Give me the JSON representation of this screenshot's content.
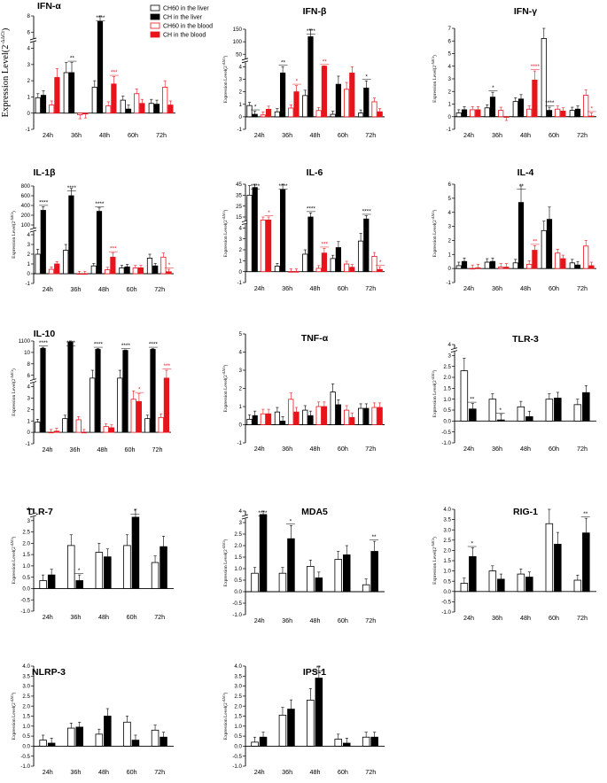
{
  "figure": {
    "y_label_main": "Expression Level(2",
    "y_label_sup": "-ΔΔCt",
    "y_label_close": ")",
    "colors": {
      "liver_ch60": "#ffffff",
      "liver_ch": "#000000",
      "blood_ch60": "#ffffff",
      "blood_ch": "#e8141c",
      "red": "#e8141c",
      "black": "#000000"
    },
    "legend": [
      {
        "label": "CH60 in the liver",
        "style": "open-black"
      },
      {
        "label": "CH in the liver",
        "style": "filled-black"
      },
      {
        "label": "CH60 in the blood",
        "style": "open-red"
      },
      {
        "label": "CH in the blood",
        "style": "filled-red"
      }
    ]
  },
  "chart_data": [
    {
      "type": "bar",
      "title": "IFN-α",
      "ylabel": "Expression Level(2-ΔΔCt)",
      "categories": [
        "24h",
        "36h",
        "48h",
        "60h",
        "72h"
      ],
      "ylim": [
        -1,
        8
      ],
      "yticks": [
        "-1",
        "0",
        "1",
        "2",
        "3",
        "4",
        "6",
        "8"
      ],
      "axis_break": true,
      "series": [
        {
          "name": "CH60 in the liver",
          "values": [
            0.95,
            2.5,
            1.6,
            0.8,
            0.6
          ]
        },
        {
          "name": "CH in the liver",
          "values": [
            1.1,
            2.5,
            7.3,
            0.25,
            0.55
          ]
        },
        {
          "name": "CH60 in the blood",
          "values": [
            0.5,
            -0.1,
            0.45,
            1.2,
            1.6
          ]
        },
        {
          "name": "CH in the blood",
          "values": [
            2.2,
            -0.05,
            1.8,
            0.6,
            0.5
          ]
        }
      ],
      "annotations": [
        {
          "category": "36h",
          "text": "**",
          "color": "black"
        },
        {
          "category": "48h",
          "text": "****",
          "color": "black"
        },
        {
          "category": "48h",
          "text": "***",
          "color": "red"
        }
      ]
    },
    {
      "type": "bar",
      "title": "IFN-β",
      "ylabel": "Expression Level(2-ΔΔCt)",
      "categories": [
        "24h",
        "36h",
        "48h",
        "60h",
        "72h"
      ],
      "ylim": [
        -1,
        150
      ],
      "yticks": [
        "-1",
        "0",
        "1",
        "2",
        "3",
        "4",
        "50",
        "100",
        "150"
      ],
      "axis_break": true,
      "series": [
        {
          "name": "CH60 in the liver",
          "values": [
            0.9,
            0.4,
            1.7,
            0.2,
            0.3
          ]
        },
        {
          "name": "CH in the liver",
          "values": [
            0.2,
            3.5,
            120,
            2.6,
            2.3
          ]
        },
        {
          "name": "CH60 in the blood",
          "values": [
            0.15,
            0.7,
            0.5,
            2.2,
            1.2
          ]
        },
        {
          "name": "CH in the blood",
          "values": [
            0.6,
            2.0,
            6.0,
            3.5,
            0.4
          ]
        }
      ],
      "annotations": [
        {
          "category": "24h",
          "text": "*",
          "color": "black"
        },
        {
          "category": "36h",
          "text": "**",
          "color": "black"
        },
        {
          "category": "36h",
          "text": "*",
          "color": "red"
        },
        {
          "category": "48h",
          "text": "****",
          "color": "black"
        },
        {
          "category": "48h",
          "text": "**",
          "color": "red"
        },
        {
          "category": "72h",
          "text": "*",
          "color": "black"
        }
      ]
    },
    {
      "type": "bar",
      "title": "IFN-γ",
      "ylabel": "Expression Level(2-ΔΔCt)",
      "categories": [
        "24h",
        "36h",
        "48h",
        "60h",
        "72h"
      ],
      "ylim": [
        -1,
        7
      ],
      "yticks": [
        "-1",
        "0",
        "1",
        "2",
        "3",
        "4",
        "5",
        "6",
        "7"
      ],
      "axis_break": true,
      "series": [
        {
          "name": "CH60 in the liver",
          "values": [
            0.3,
            0.7,
            1.2,
            6.2,
            0.5
          ]
        },
        {
          "name": "CH in the liver",
          "values": [
            0.55,
            1.55,
            1.4,
            0.5,
            0.6
          ]
        },
        {
          "name": "CH60 in the blood",
          "values": [
            0.55,
            0.5,
            0.6,
            0.6,
            1.7
          ]
        },
        {
          "name": "CH in the blood",
          "values": [
            0.55,
            -0.05,
            2.9,
            0.45,
            0.05
          ]
        }
      ],
      "annotations": [
        {
          "category": "36h",
          "text": "*",
          "color": "black"
        },
        {
          "category": "48h",
          "text": "****",
          "color": "red"
        },
        {
          "category": "60h",
          "text": "****",
          "color": "black"
        },
        {
          "category": "72h",
          "text": "*",
          "color": "red"
        }
      ]
    },
    {
      "type": "bar",
      "title": "IL-1β",
      "ylabel": "Expression Level(2-ΔΔCt)",
      "categories": [
        "24h",
        "36h",
        "48h",
        "60h",
        "72h"
      ],
      "ylim": [
        -1,
        800
      ],
      "yticks": [
        "-1",
        "0",
        "1",
        "2",
        "3",
        "4",
        "100",
        "200",
        "400",
        "600",
        "800"
      ],
      "axis_break": true,
      "series": [
        {
          "name": "CH60 in the liver",
          "values": [
            2.0,
            2.4,
            0.8,
            0.6,
            1.6
          ]
        },
        {
          "name": "CH in the liver",
          "values": [
            300,
            600,
            280,
            0.7,
            0.8
          ]
        },
        {
          "name": "CH60 in the blood",
          "values": [
            0.45,
            0.0,
            0.4,
            0.6,
            1.7
          ]
        },
        {
          "name": "CH in the blood",
          "values": [
            1.0,
            0.0,
            1.7,
            0.6,
            0.2
          ]
        }
      ],
      "annotations": [
        {
          "category": "24h",
          "text": "****",
          "color": "black"
        },
        {
          "category": "36h",
          "text": "****",
          "color": "black"
        },
        {
          "category": "48h",
          "text": "****",
          "color": "black"
        },
        {
          "category": "48h",
          "text": "***",
          "color": "red"
        },
        {
          "category": "72h",
          "text": "*",
          "color": "red"
        }
      ]
    },
    {
      "type": "bar",
      "title": "IL-6",
      "ylabel": "Expression Level(2-ΔΔCt)",
      "categories": [
        "24h",
        "36h",
        "48h",
        "60h",
        "72h"
      ],
      "ylim": [
        -1,
        45
      ],
      "yticks": [
        "-1",
        "0",
        "1",
        "2",
        "3",
        "4",
        "15",
        "25",
        "35",
        "45"
      ],
      "axis_break": true,
      "series": [
        {
          "name": "CH60 in the liver",
          "values": [
            35,
            0.5,
            1.6,
            1.2,
            2.8
          ]
        },
        {
          "name": "CH in the liver",
          "values": [
            42,
            40,
            15,
            2.2,
            13
          ]
        },
        {
          "name": "CH60 in the blood",
          "values": [
            12,
            0.0,
            0.3,
            0.7,
            1.4
          ]
        },
        {
          "name": "CH in the blood",
          "values": [
            12,
            0.0,
            1.7,
            0.4,
            0.2
          ]
        }
      ],
      "annotations": [
        {
          "category": "24h",
          "text": "****",
          "color": "black"
        },
        {
          "category": "24h",
          "text": "*",
          "color": "red"
        },
        {
          "category": "36h",
          "text": "****",
          "color": "black"
        },
        {
          "category": "48h",
          "text": "****",
          "color": "black"
        },
        {
          "category": "48h",
          "text": "***",
          "color": "red"
        },
        {
          "category": "72h",
          "text": "****",
          "color": "black"
        },
        {
          "category": "72h",
          "text": "*",
          "color": "red"
        }
      ]
    },
    {
      "type": "bar",
      "title": "IL-4",
      "ylabel": "Expression Level(2-ΔΔCt)",
      "categories": [
        "24h",
        "36h",
        "48h",
        "60h",
        "72h"
      ],
      "ylim": [
        -1,
        6
      ],
      "yticks": [
        "-1",
        "0",
        "1",
        "2",
        "3",
        "4",
        "5",
        "6"
      ],
      "axis_break": true,
      "series": [
        {
          "name": "CH60 in the liver",
          "values": [
            0.2,
            0.45,
            0.4,
            2.7,
            0.4
          ]
        },
        {
          "name": "CH in the liver",
          "values": [
            0.5,
            0.5,
            4.7,
            3.5,
            0.25
          ]
        },
        {
          "name": "CH60 in the blood",
          "values": [
            0.0,
            0.1,
            0.3,
            1.1,
            1.6
          ]
        },
        {
          "name": "CH in the blood",
          "values": [
            0.05,
            0.1,
            1.3,
            0.7,
            0.2
          ]
        }
      ],
      "annotations": [
        {
          "category": "48h",
          "text": "**",
          "color": "black"
        },
        {
          "category": "48h",
          "text": "**",
          "color": "red"
        }
      ]
    },
    {
      "type": "bar",
      "title": "IL-10",
      "ylabel": "Expression Level(2-ΔΔCt)",
      "categories": [
        "24h",
        "36h",
        "48h",
        "60h",
        "72h"
      ],
      "ylim": [
        -1,
        1100
      ],
      "yticks": [
        "-1",
        "0",
        "1",
        "2",
        "3",
        "4",
        "6",
        "8",
        "10",
        "1100"
      ],
      "axis_break": true,
      "series": [
        {
          "name": "CH60 in the liver",
          "values": [
            0.9,
            1.2,
            5.5,
            5.5,
            1.2
          ]
        },
        {
          "name": "CH in the liver",
          "values": [
            400,
            1000,
            300,
            200,
            300
          ]
        },
        {
          "name": "CH60 in the blood",
          "values": [
            0.0,
            1.1,
            0.5,
            2.9,
            1.3
          ]
        },
        {
          "name": "CH in the blood",
          "values": [
            0.1,
            0.0,
            0.4,
            2.7,
            5.5
          ]
        }
      ],
      "annotations": [
        {
          "category": "24h",
          "text": "****",
          "color": "black"
        },
        {
          "category": "36h",
          "text": "****",
          "color": "black"
        },
        {
          "category": "48h",
          "text": "****",
          "color": "black"
        },
        {
          "category": "60h",
          "text": "****",
          "color": "black"
        },
        {
          "category": "60h",
          "text": "*",
          "color": "red"
        },
        {
          "category": "72h",
          "text": "****",
          "color": "black"
        },
        {
          "category": "72h",
          "text": "***",
          "color": "red"
        }
      ]
    },
    {
      "type": "bar",
      "title": "TNF-α",
      "ylabel": "Expression Level(2-ΔΔCt)",
      "categories": [
        "24h",
        "36h",
        "48h",
        "60h",
        "72h"
      ],
      "ylim": [
        -1,
        5
      ],
      "yticks": [
        "-1",
        "0",
        "1",
        "2",
        "3",
        "4",
        "5"
      ],
      "axis_break": false,
      "series": [
        {
          "name": "CH60 in the liver",
          "values": [
            0.3,
            0.7,
            0.8,
            1.8,
            0.9
          ]
        },
        {
          "name": "CH in the liver",
          "values": [
            0.5,
            0.2,
            0.5,
            1.1,
            0.9
          ]
        },
        {
          "name": "CH60 in the blood",
          "values": [
            0.6,
            1.4,
            1.0,
            0.8,
            0.95
          ]
        },
        {
          "name": "CH in the blood",
          "values": [
            0.6,
            0.7,
            1.0,
            0.4,
            0.95
          ]
        }
      ],
      "annotations": []
    },
    {
      "type": "bar",
      "title": "TLR-3",
      "ylabel": "Expression Level(2-ΔΔCt)",
      "categories": [
        "24h",
        "36h",
        "48h",
        "60h",
        "72h"
      ],
      "ylim": [
        -1,
        4
      ],
      "yticks": [
        "-1.0",
        "-0.5",
        "0.0",
        "0.5",
        "1.0",
        "1.5",
        "2.0",
        "2.5",
        "3",
        "4"
      ],
      "axis_break": true,
      "series": [
        {
          "name": "CH60 in the liver",
          "values": [
            2.3,
            1.0,
            0.65,
            1.0,
            0.75
          ]
        },
        {
          "name": "CH in the liver",
          "values": [
            0.55,
            0.05,
            0.2,
            1.05,
            1.3
          ]
        }
      ],
      "annotations": [
        {
          "category": "24h",
          "text": "**",
          "color": "black"
        },
        {
          "category": "36h",
          "text": "*",
          "color": "black"
        }
      ]
    },
    {
      "type": "bar",
      "title": "TLR-7",
      "ylabel": "Expression Level(2-ΔΔCt)",
      "categories": [
        "24h",
        "36h",
        "48h",
        "60h",
        "72h"
      ],
      "ylim": [
        -1,
        4
      ],
      "yticks": [
        "-1.0",
        "-0.5",
        "0.0",
        "0.5",
        "1.0",
        "1.5",
        "2.0",
        "2.5",
        "3",
        "4"
      ],
      "axis_break": true,
      "series": [
        {
          "name": "CH60 in the liver",
          "values": [
            0.35,
            1.9,
            1.6,
            1.9,
            1.15
          ]
        },
        {
          "name": "CH in the liver",
          "values": [
            0.6,
            0.35,
            1.4,
            3.3,
            1.85
          ]
        }
      ],
      "annotations": [
        {
          "category": "36h",
          "text": "*",
          "color": "black"
        },
        {
          "category": "60h",
          "text": "*",
          "color": "black"
        }
      ]
    },
    {
      "type": "bar",
      "title": "MDA5",
      "ylabel": "Expression Level(2-ΔΔCt)",
      "categories": [
        "24h",
        "36h",
        "48h",
        "60h",
        "72h"
      ],
      "ylim": [
        -1,
        4
      ],
      "yticks": [
        "-1.0",
        "-0.5",
        "0.0",
        "0.5",
        "1.0",
        "1.5",
        "2.0",
        "2.5",
        "3",
        "4"
      ],
      "axis_break": true,
      "series": [
        {
          "name": "CH60 in the liver",
          "values": [
            0.8,
            0.8,
            1.1,
            1.4,
            0.3
          ]
        },
        {
          "name": "CH in the liver",
          "values": [
            3.7,
            2.3,
            0.6,
            1.6,
            1.75
          ]
        }
      ],
      "annotations": [
        {
          "category": "24h",
          "text": "****",
          "color": "black"
        },
        {
          "category": "36h",
          "text": "*",
          "color": "black"
        },
        {
          "category": "72h",
          "text": "**",
          "color": "black"
        }
      ]
    },
    {
      "type": "bar",
      "title": "RIG-1",
      "ylabel": "Expression Level(2-ΔΔCt)",
      "categories": [
        "24h",
        "36h",
        "48h",
        "60h",
        "72h"
      ],
      "ylim": [
        -1,
        4
      ],
      "yticks": [
        "-1.0",
        "-0.5",
        "0.0",
        "0.5",
        "1.0",
        "1.5",
        "2.0",
        "2.5",
        "3.0",
        "3.5",
        "4.0"
      ],
      "axis_break": false,
      "series": [
        {
          "name": "CH60 in the liver",
          "values": [
            0.4,
            1.0,
            0.85,
            3.3,
            0.55
          ]
        },
        {
          "name": "CH in the liver",
          "values": [
            1.7,
            0.6,
            0.7,
            2.3,
            2.85
          ]
        }
      ],
      "annotations": [
        {
          "category": "24h",
          "text": "*",
          "color": "black"
        },
        {
          "category": "72h",
          "text": "**",
          "color": "black"
        }
      ]
    },
    {
      "type": "bar",
      "title": "NLRP-3",
      "ylabel": "Expression Level(2-ΔΔCt)",
      "categories": [
        "24h",
        "36h",
        "48h",
        "60h",
        "72h"
      ],
      "ylim": [
        -1,
        4
      ],
      "yticks": [
        "-1.0",
        "-0.5",
        "0.0",
        "0.5",
        "1.0",
        "1.5",
        "2.0",
        "2.5",
        "3.0",
        "3.5",
        "4.0"
      ],
      "axis_break": false,
      "series": [
        {
          "name": "CH60 in the liver",
          "values": [
            0.3,
            0.9,
            0.6,
            1.2,
            0.8
          ]
        },
        {
          "name": "CH in the liver",
          "values": [
            0.15,
            0.95,
            1.5,
            0.3,
            0.45
          ]
        }
      ],
      "annotations": []
    },
    {
      "type": "bar",
      "title": "IPS-1",
      "ylabel": "Expression Level(2-ΔΔCt)",
      "categories": [
        "24h",
        "36h",
        "48h",
        "60h",
        "72h"
      ],
      "ylim": [
        -1,
        4
      ],
      "yticks": [
        "-1.0",
        "-0.5",
        "0.0",
        "0.5",
        "1.0",
        "1.5",
        "2.0",
        "2.5",
        "3.0",
        "3.5",
        "4.0"
      ],
      "axis_break": false,
      "series": [
        {
          "name": "CH60 in the liver",
          "values": [
            0.2,
            1.55,
            2.3,
            0.35,
            0.45
          ]
        },
        {
          "name": "CH in the liver",
          "values": [
            0.45,
            1.85,
            3.4,
            0.15,
            0.45
          ]
        }
      ],
      "annotations": [
        {
          "category": "48h",
          "text": "**",
          "color": "black"
        }
      ]
    }
  ]
}
